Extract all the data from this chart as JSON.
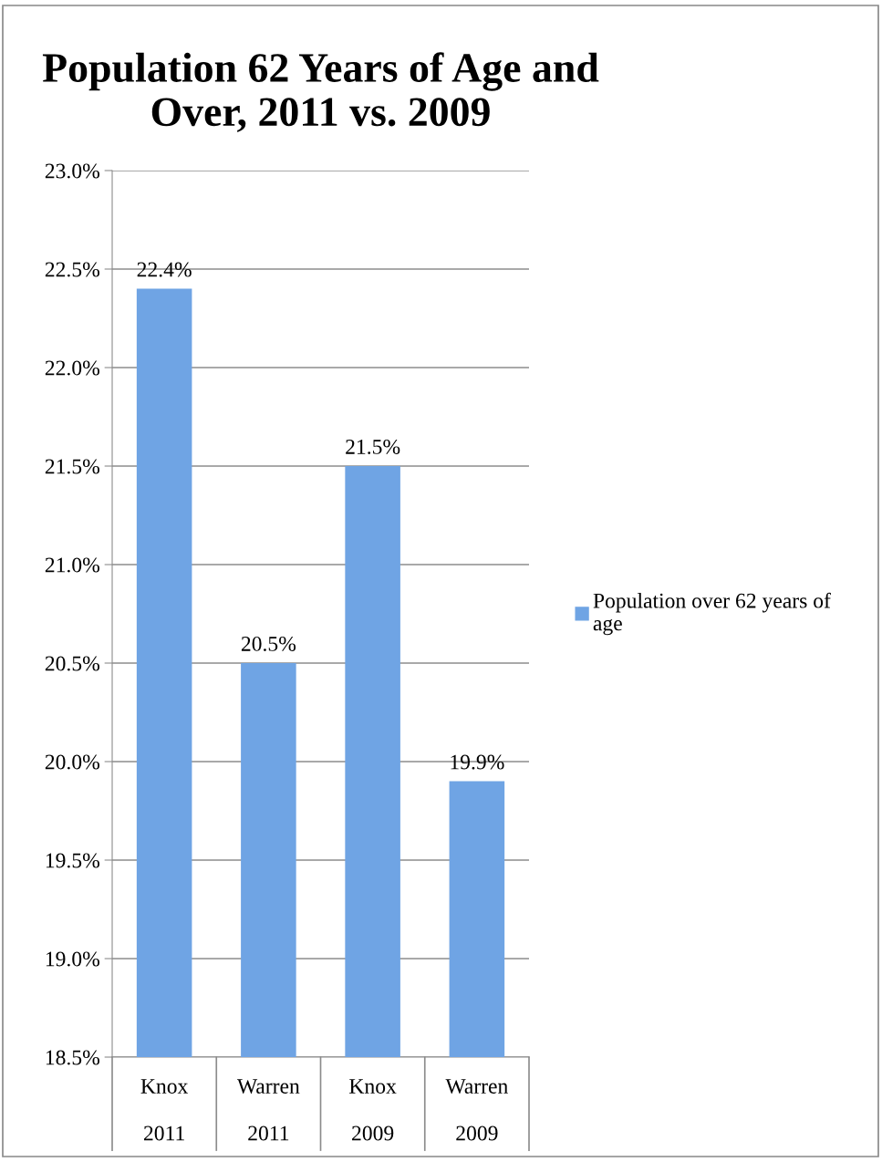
{
  "chart_data": {
    "type": "bar",
    "title": "Population 62 Years of Age and Over, 2011 vs. 2009",
    "categories": [
      "Knox\n2011",
      "Warren\n2011",
      "Knox\n2009",
      "Warren\n2009"
    ],
    "series": [
      {
        "name": "Population over 62 years of age",
        "color": "#6fa4e4",
        "values": [
          22.4,
          20.5,
          21.5,
          19.9
        ],
        "value_labels": [
          "22.4%",
          "20.5%",
          "21.5%",
          "19.9%"
        ]
      }
    ],
    "ylim": [
      18.5,
      23.0
    ],
    "yticks": [
      {
        "value": 18.5,
        "label": "18.5%"
      },
      {
        "value": 19.0,
        "label": "19.0%"
      },
      {
        "value": 19.5,
        "label": "19.5%"
      },
      {
        "value": 20.0,
        "label": "20.0%"
      },
      {
        "value": 20.5,
        "label": "20.5%"
      },
      {
        "value": 21.0,
        "label": "21.0%"
      },
      {
        "value": 21.5,
        "label": "21.5%"
      },
      {
        "value": 22.0,
        "label": "22.0%"
      },
      {
        "value": 22.5,
        "label": "22.5%"
      },
      {
        "value": 23.0,
        "label": "23.0%"
      }
    ],
    "grid": "y",
    "legend": "right"
  }
}
